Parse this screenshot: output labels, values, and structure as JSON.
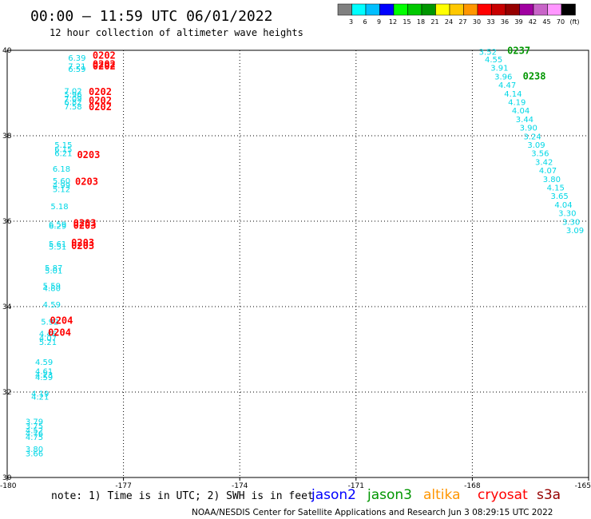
{
  "header": {
    "title": "00:00 – 11:59 UTC 06/01/2022",
    "subtitle": "12 hour collection of altimeter wave heights"
  },
  "colorbar": {
    "colors": [
      "#808080",
      "#00ffff",
      "#00bfff",
      "#0000ff",
      "#00ff00",
      "#00c800",
      "#009600",
      "#ffff00",
      "#ffc800",
      "#ff9600",
      "#ff0000",
      "#c80000",
      "#960000",
      "#a000a0",
      "#c864c8",
      "#ff96ff",
      "#000000"
    ],
    "labels": [
      "3",
      "6",
      "9",
      "12",
      "15",
      "18",
      "21",
      "24",
      "27",
      "30",
      "33",
      "36",
      "39",
      "42",
      "45",
      "70",
      "(ft)"
    ]
  },
  "footer": {
    "note": "note:  1) Time is in UTC;  2) SWH is in feet",
    "satellites": [
      {
        "name": "jason2",
        "color": "#0000ff"
      },
      {
        "name": "jason3",
        "color": "#009600"
      },
      {
        "name": "altika",
        "color": "#ff9600"
      },
      {
        "name": "cryosat",
        "color": "#ff0000"
      },
      {
        "name": "s3a",
        "color": "#960000"
      }
    ],
    "credit": "NOAA/NESDIS Center for Satellite Applications and Research    Jun  3 08:29:15 UTC 2022"
  },
  "chart_data": {
    "type": "scatter",
    "xlim": [
      -180,
      -165
    ],
    "ylim": [
      30,
      40
    ],
    "x_ticks": [
      "-180",
      "-177",
      "-174",
      "-171",
      "-168",
      "-165"
    ],
    "y_ticks": [
      "30",
      "32",
      "34",
      "36",
      "38",
      "40"
    ],
    "grid": true,
    "value_labels": [
      {
        "x": -178.2,
        "y": 39.76,
        "text": "6.39"
      },
      {
        "x": -178.2,
        "y": 39.56,
        "text": "7.21"
      },
      {
        "x": -178.2,
        "y": 39.5,
        "text": "6.59"
      },
      {
        "x": -178.3,
        "y": 38.98,
        "text": "7.02"
      },
      {
        "x": -178.3,
        "y": 38.9,
        "text": "5.96"
      },
      {
        "x": -178.3,
        "y": 38.8,
        "text": "7.09"
      },
      {
        "x": -178.3,
        "y": 38.72,
        "text": "6.82"
      },
      {
        "x": -178.3,
        "y": 38.62,
        "text": "7.58"
      },
      {
        "x": -178.55,
        "y": 37.72,
        "text": "5.15"
      },
      {
        "x": -178.55,
        "y": 37.62,
        "text": "6.15"
      },
      {
        "x": -178.55,
        "y": 37.52,
        "text": "6.21"
      },
      {
        "x": -178.6,
        "y": 37.16,
        "text": "6.18"
      },
      {
        "x": -178.6,
        "y": 36.88,
        "text": "5.60"
      },
      {
        "x": -178.6,
        "y": 36.78,
        "text": "4.99"
      },
      {
        "x": -178.6,
        "y": 36.68,
        "text": "5.12"
      },
      {
        "x": -178.65,
        "y": 36.28,
        "text": "5.18"
      },
      {
        "x": -178.7,
        "y": 35.86,
        "text": "6.59"
      },
      {
        "x": -178.7,
        "y": 35.82,
        "text": "6.29"
      },
      {
        "x": -178.7,
        "y": 35.4,
        "text": "5.61"
      },
      {
        "x": -178.7,
        "y": 35.34,
        "text": "5.51"
      },
      {
        "x": -178.8,
        "y": 34.84,
        "text": "5.87"
      },
      {
        "x": -178.8,
        "y": 34.78,
        "text": "5.01"
      },
      {
        "x": -178.85,
        "y": 34.42,
        "text": "5.59"
      },
      {
        "x": -178.85,
        "y": 34.36,
        "text": "4.80"
      },
      {
        "x": -178.85,
        "y": 33.98,
        "text": "4.59"
      },
      {
        "x": -178.9,
        "y": 33.58,
        "text": "5.92"
      },
      {
        "x": -178.95,
        "y": 33.3,
        "text": "4.46"
      },
      {
        "x": -178.95,
        "y": 33.2,
        "text": "4.07"
      },
      {
        "x": -178.95,
        "y": 33.1,
        "text": "5.21"
      },
      {
        "x": -179.05,
        "y": 32.64,
        "text": "4.59"
      },
      {
        "x": -179.05,
        "y": 32.42,
        "text": "4.61"
      },
      {
        "x": -179.05,
        "y": 32.34,
        "text": "4.23"
      },
      {
        "x": -179.05,
        "y": 32.28,
        "text": "4.59"
      },
      {
        "x": -179.15,
        "y": 31.9,
        "text": "4.19"
      },
      {
        "x": -179.15,
        "y": 31.82,
        "text": "4.21"
      },
      {
        "x": -179.3,
        "y": 31.24,
        "text": "3.79"
      },
      {
        "x": -179.3,
        "y": 31.14,
        "text": "3.75"
      },
      {
        "x": -179.3,
        "y": 31.04,
        "text": "4.52"
      },
      {
        "x": -179.3,
        "y": 30.96,
        "text": "4.76"
      },
      {
        "x": -179.3,
        "y": 30.88,
        "text": "4.75"
      },
      {
        "x": -179.3,
        "y": 30.6,
        "text": "3.80"
      },
      {
        "x": -179.3,
        "y": 30.5,
        "text": "3.66"
      },
      {
        "x": -167.6,
        "y": 39.9,
        "text": "3.52"
      },
      {
        "x": -167.45,
        "y": 39.72,
        "text": "4.55"
      },
      {
        "x": -167.3,
        "y": 39.52,
        "text": "3.91"
      },
      {
        "x": -167.2,
        "y": 39.32,
        "text": "3.96"
      },
      {
        "x": -167.1,
        "y": 39.12,
        "text": "4.47"
      },
      {
        "x": -166.95,
        "y": 38.92,
        "text": "4.14"
      },
      {
        "x": -166.85,
        "y": 38.72,
        "text": "4.19"
      },
      {
        "x": -166.75,
        "y": 38.52,
        "text": "4.04"
      },
      {
        "x": -166.65,
        "y": 38.32,
        "text": "3.44"
      },
      {
        "x": -166.55,
        "y": 38.12,
        "text": "3.90"
      },
      {
        "x": -166.45,
        "y": 37.92,
        "text": "3.24"
      },
      {
        "x": -166.35,
        "y": 37.72,
        "text": "3.09"
      },
      {
        "x": -166.25,
        "y": 37.52,
        "text": "3.56"
      },
      {
        "x": -166.15,
        "y": 37.32,
        "text": "3.42"
      },
      {
        "x": -166.05,
        "y": 37.12,
        "text": "4.07"
      },
      {
        "x": -165.95,
        "y": 36.92,
        "text": "3.80"
      },
      {
        "x": -165.85,
        "y": 36.72,
        "text": "4.15"
      },
      {
        "x": -165.75,
        "y": 36.52,
        "text": "3.65"
      },
      {
        "x": -165.65,
        "y": 36.32,
        "text": "4.04"
      },
      {
        "x": -165.55,
        "y": 36.12,
        "text": "3.30"
      },
      {
        "x": -165.45,
        "y": 35.92,
        "text": "3.30"
      },
      {
        "x": -165.35,
        "y": 35.72,
        "text": "3.09"
      }
    ],
    "time_labels": [
      {
        "x": -177.5,
        "y": 39.8,
        "text": "0202",
        "satellite": "cryosat"
      },
      {
        "x": -177.5,
        "y": 39.6,
        "text": "0202",
        "satellite": "cryosat"
      },
      {
        "x": -177.5,
        "y": 39.55,
        "text": "0202",
        "satellite": "cryosat"
      },
      {
        "x": -177.6,
        "y": 38.95,
        "text": "0202",
        "satellite": "cryosat"
      },
      {
        "x": -177.6,
        "y": 38.75,
        "text": "0202",
        "satellite": "cryosat"
      },
      {
        "x": -177.6,
        "y": 38.6,
        "text": "0202",
        "satellite": "cryosat"
      },
      {
        "x": -177.9,
        "y": 37.48,
        "text": "0203",
        "satellite": "cryosat"
      },
      {
        "x": -177.95,
        "y": 36.85,
        "text": "0203",
        "satellite": "cryosat"
      },
      {
        "x": -178.0,
        "y": 35.88,
        "text": "0203",
        "satellite": "cryosat"
      },
      {
        "x": -178.0,
        "y": 35.82,
        "text": "0203",
        "satellite": "cryosat"
      },
      {
        "x": -178.05,
        "y": 35.42,
        "text": "0203",
        "satellite": "cryosat"
      },
      {
        "x": -178.05,
        "y": 35.35,
        "text": "0203",
        "satellite": "cryosat"
      },
      {
        "x": -178.6,
        "y": 33.6,
        "text": "0204",
        "satellite": "cryosat"
      },
      {
        "x": -178.65,
        "y": 33.32,
        "text": "0204",
        "satellite": "cryosat"
      },
      {
        "x": -166.8,
        "y": 39.92,
        "text": "0237",
        "satellite": "jason3"
      },
      {
        "x": -166.4,
        "y": 39.32,
        "text": "0238",
        "satellite": "jason3"
      }
    ]
  }
}
